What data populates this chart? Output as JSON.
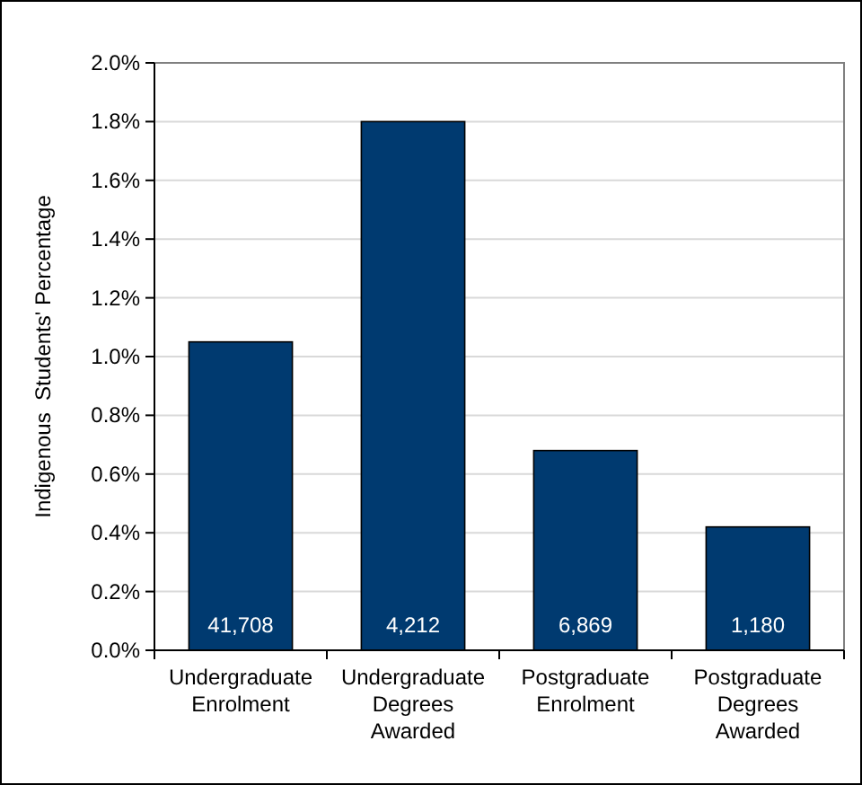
{
  "chart_data": {
    "type": "bar",
    "ylabel": "Indigenous  Students' Percentage",
    "categories": [
      "Undergraduate Enrolment",
      "Undergraduate Degrees Awarded",
      "Postgraduate Enrolment",
      "Postgraduate Degrees Awarded"
    ],
    "values": [
      1.05,
      1.8,
      0.68,
      0.42
    ],
    "annotations": [
      "41,708",
      "4,212",
      "6,869",
      "1,180"
    ],
    "color": "#003a70",
    "ylim": [
      0,
      2
    ],
    "yticks": [
      {
        "value": 0,
        "label": "0.0%"
      },
      {
        "value": 0.2,
        "label": "0.2%"
      },
      {
        "value": 0.4,
        "label": "0.4%"
      },
      {
        "value": 0.6,
        "label": "0.6%"
      },
      {
        "value": 0.8,
        "label": "0.8%"
      },
      {
        "value": 1,
        "label": "1.0%"
      },
      {
        "value": 1.2,
        "label": "1.2%"
      },
      {
        "value": 1.4,
        "label": "1.4%"
      },
      {
        "value": 1.6,
        "label": "1.6%"
      },
      {
        "value": 1.8,
        "label": "1.8%"
      },
      {
        "value": 2,
        "label": "2.0%"
      }
    ],
    "grid": "y"
  }
}
